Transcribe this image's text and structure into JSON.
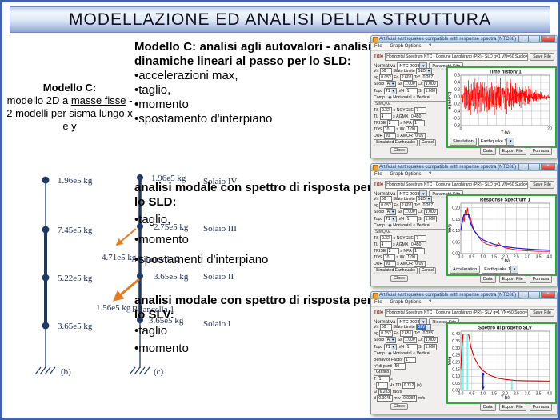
{
  "slide": {
    "title": "MODELLAZIONE ED ANALISI DELLA STRUTTURA"
  },
  "left_panel": {
    "heading": "Modello C:",
    "body_pre": "modello 2D a ",
    "body_underlined": "masse fisse",
    "body_post": " - 2 modelli per sisma lungo x e y"
  },
  "text_blocks": {
    "block1": {
      "heading": "Modello C: analisi agli autovalori - analisi dinamiche lineari al passo per lo SLD:",
      "bullets": [
        "accelerazioni max,",
        "taglio,",
        "momento",
        "spostamento d'interpiano"
      ]
    },
    "block2": {
      "heading": "analisi modale con spettro di risposta per lo SLD:",
      "bullets": [
        "taglio,",
        "momento",
        "spostamenti d'interpiano"
      ]
    },
    "block3": {
      "heading": "analisi modale con spettro di risposta per lo SLV:",
      "bullets": [
        "taglio",
        "momento"
      ]
    }
  },
  "diagram": {
    "accent_color": "#1F3864",
    "arrow_color": "#E07C24",
    "model_b": {
      "masses": [
        "1.96e5 kg",
        "7.45e5 kg",
        "5.22e5 kg",
        "3.65e5 kg"
      ],
      "caption": "(b)"
    },
    "model_c": {
      "masses": [
        "1.96e5 kg",
        "2.75e5 kg",
        "3.65e5 kg",
        "3.65e5 kg"
      ],
      "floors": [
        "Solaio IV",
        "Solaio III",
        "Solaio II",
        "Solaio I"
      ],
      "caption": "(c)",
      "pendulums": [
        {
          "mass": "4.71e5 kg",
          "name": "Bilancella 2"
        },
        {
          "mass": "1.56e5 kg",
          "name": "Bilancella 1"
        }
      ]
    }
  },
  "windows": [
    {
      "title_bar": "Artificial earthquakes compatible with response spectra (NTC08)",
      "menu": [
        "File",
        "Graph Options",
        "?"
      ],
      "title_label": "Title",
      "title_value": "Horizontal Spectrum NTC - Comune Langhirano (PR) - SLD q=1 VN=50 Suolo=A Topo=T1 SF=1",
      "save_button": "Save File",
      "normativa_label": "Normativa",
      "normativa_value": "NTC 2008",
      "parametri_button": "Parametri Sito",
      "form_rows": [
        [
          [
            "lbl",
            "Vn"
          ],
          [
            "box",
            "50"
          ],
          [
            "lbl",
            "Stato Limite"
          ],
          [
            "combo",
            "SLD"
          ]
        ],
        [
          [
            "lbl",
            "ag"
          ],
          [
            "box",
            "0.052"
          ],
          [
            "lbl",
            "Fo"
          ],
          [
            "box",
            "2.602"
          ],
          [
            "lbl",
            "Tc*"
          ],
          [
            "box",
            "0.267"
          ]
        ],
        [
          [
            "lbl",
            "Suolo"
          ],
          [
            "combo",
            "A"
          ],
          [
            "lbl",
            "Ss"
          ],
          [
            "box",
            "1.000"
          ],
          [
            "lbl",
            "Cc"
          ],
          [
            "box",
            "1.000"
          ]
        ],
        [
          [
            "lbl",
            "Topo"
          ],
          [
            "combo",
            "T1"
          ],
          [
            "lbl",
            "h/H"
          ],
          [
            "box",
            "1"
          ],
          [
            "lbl",
            "St"
          ],
          [
            "box",
            "1.000"
          ]
        ],
        [
          [
            "lbl",
            "Comp.:"
          ],
          [
            "radio1",
            "Horizontal"
          ],
          [
            "radio0",
            "Vertical"
          ]
        ],
        [
          [
            "group",
            "SIMQKE"
          ]
        ],
        [
          [
            "lbl",
            "TS"
          ],
          [
            "box",
            "0.32"
          ],
          [
            "lbl",
            "s"
          ],
          [
            "lbl",
            "NCYCLE"
          ],
          [
            "box",
            "7"
          ]
        ],
        [
          [
            "lbl",
            "TL"
          ],
          [
            "box",
            "4"
          ],
          [
            "lbl",
            "s"
          ],
          [
            "lbl",
            "AGMX"
          ],
          [
            "box",
            "0.450"
          ]
        ],
        [
          [
            "lbl",
            "TRISE"
          ],
          [
            "box",
            "2"
          ],
          [
            "lbl",
            "s"
          ],
          [
            "lbl",
            "NPA"
          ],
          [
            "box",
            "1"
          ]
        ],
        [
          [
            "lbl",
            "TDS"
          ],
          [
            "box",
            "10"
          ],
          [
            "lbl",
            "s"
          ],
          [
            "lbl",
            "IIX"
          ],
          [
            "box",
            "1.00"
          ]
        ],
        [
          [
            "lbl",
            "DUR"
          ],
          [
            "box",
            "20"
          ],
          [
            "lbl",
            "s"
          ],
          [
            "lbl",
            "AMOR"
          ],
          [
            "box",
            "0.05"
          ]
        ],
        [
          [
            "btn",
            "Simulated Earthquake"
          ],
          [
            "btn",
            "Cancel"
          ]
        ]
      ],
      "graph_button": "Simulation",
      "graph_combo": "Earthquake 1",
      "footer_buttons": [
        "Data",
        "Export File",
        "Formula"
      ],
      "close_button": "Close"
    },
    {
      "title_bar": "Artificial earthquakes compatible with response spectra (NTC08)",
      "menu": [
        "File",
        "Graph Options",
        "?"
      ],
      "title_label": "Title",
      "title_value": "Horizontal Spectrum NTC - Comune Langhirano (PR) - SLD q=1 VN=50 Suolo=A Topo=T1 SF=1",
      "save_button": "Save File",
      "normativa_label": "Normativa",
      "normativa_value": "NTC 2008",
      "parametri_button": "Parametri Sito",
      "form_rows": [
        [
          [
            "lbl",
            "Vn"
          ],
          [
            "box",
            "50"
          ],
          [
            "lbl",
            "Stato Limite"
          ],
          [
            "combo",
            "SLD"
          ]
        ],
        [
          [
            "lbl",
            "ag"
          ],
          [
            "box",
            "0.052"
          ],
          [
            "lbl",
            "Fo"
          ],
          [
            "box",
            "2.602"
          ],
          [
            "lbl",
            "Tc*"
          ],
          [
            "box",
            "0.267"
          ]
        ],
        [
          [
            "lbl",
            "Suolo"
          ],
          [
            "combo",
            "A"
          ],
          [
            "lbl",
            "Ss"
          ],
          [
            "box",
            "1.000"
          ],
          [
            "lbl",
            "Cc"
          ],
          [
            "box",
            "1.000"
          ]
        ],
        [
          [
            "lbl",
            "Topo"
          ],
          [
            "combo",
            "T1"
          ],
          [
            "lbl",
            "h/H"
          ],
          [
            "box",
            "1"
          ],
          [
            "lbl",
            "St"
          ],
          [
            "box",
            "1.000"
          ]
        ],
        [
          [
            "lbl",
            "Comp.:"
          ],
          [
            "radio1",
            "Horizontal"
          ],
          [
            "radio0",
            "Vertical"
          ]
        ],
        [
          [
            "group",
            "SIMQKE"
          ]
        ],
        [
          [
            "lbl",
            "TS"
          ],
          [
            "box",
            "0.32"
          ],
          [
            "lbl",
            "s"
          ],
          [
            "lbl",
            "NCYCLE"
          ],
          [
            "box",
            "7"
          ]
        ],
        [
          [
            "lbl",
            "TL"
          ],
          [
            "box",
            "4"
          ],
          [
            "lbl",
            "s"
          ],
          [
            "lbl",
            "AGMX"
          ],
          [
            "box",
            "0.450"
          ]
        ],
        [
          [
            "lbl",
            "TRISE"
          ],
          [
            "box",
            "2"
          ],
          [
            "lbl",
            "s"
          ],
          [
            "lbl",
            "NPA"
          ],
          [
            "box",
            "1"
          ]
        ],
        [
          [
            "lbl",
            "TDS"
          ],
          [
            "box",
            "10"
          ],
          [
            "lbl",
            "s"
          ],
          [
            "lbl",
            "IIX"
          ],
          [
            "box",
            "1.00"
          ]
        ],
        [
          [
            "lbl",
            "DUR"
          ],
          [
            "box",
            "20"
          ],
          [
            "lbl",
            "s"
          ],
          [
            "lbl",
            "AMOR"
          ],
          [
            "box",
            "0.05"
          ]
        ],
        [
          [
            "btn",
            "Simulated Earthquake"
          ],
          [
            "btn",
            "Cancel"
          ]
        ]
      ],
      "graph_button": "Acceleration",
      "graph_combo": "Earthquake 1",
      "footer_buttons": [
        "Data",
        "Export File",
        "Formula"
      ],
      "close_button": "Close"
    },
    {
      "title_bar": "Artificial earthquakes compatible with response spectra (NTC08)",
      "menu": [
        "File",
        "Graph Options",
        "?"
      ],
      "title_label": "Title",
      "title_value": "Horizontal Spectrum NTC - Comune Langhirano (PR) - SLV q=1 VN=50 Suolo=A Topo=T1 SF=1",
      "save_button": "Save File",
      "normativa_label": "Normativa",
      "normativa_value": "NTC 2008",
      "parametri_button": "Ricerca Sito",
      "form_rows": [
        [
          [
            "lbl",
            "Vn"
          ],
          [
            "box",
            "50"
          ],
          [
            "lbl",
            "Stato Limite"
          ],
          [
            "combosel",
            "SLV"
          ]
        ],
        [
          [
            "lbl",
            "ag"
          ],
          [
            "box",
            "0.152"
          ],
          [
            "lbl",
            "Fo"
          ],
          [
            "box",
            "2.651"
          ],
          [
            "lbl",
            "Tc*"
          ],
          [
            "box",
            "0.285"
          ]
        ],
        [
          [
            "lbl",
            "Suolo"
          ],
          [
            "combo",
            "A"
          ],
          [
            "lbl",
            "Ss"
          ],
          [
            "box",
            "1.000"
          ],
          [
            "lbl",
            "Cc"
          ],
          [
            "box",
            "1.000"
          ]
        ],
        [
          [
            "lbl",
            "Topo"
          ],
          [
            "combo",
            "T1"
          ],
          [
            "lbl",
            "h/H"
          ],
          [
            "box",
            "1"
          ],
          [
            "lbl",
            "St"
          ],
          [
            "box",
            "1.000"
          ]
        ],
        [
          [
            "lbl",
            "Comp.:"
          ],
          [
            "radio1",
            "Horizontal"
          ],
          [
            "radio0",
            "Vertical"
          ]
        ],
        [
          [
            "lbl",
            "Behavior Factor"
          ],
          [
            "box",
            "1"
          ]
        ],
        [
          [
            "lbl",
            "n° di punti"
          ],
          [
            "box",
            "50"
          ]
        ],
        [
          [
            "btn",
            "Grafico"
          ]
        ],
        [
          [
            "lbl",
            "T"
          ],
          [
            "box",
            "1"
          ],
          [
            "lbl",
            "s"
          ]
        ],
        [
          [
            "lbl",
            "f"
          ],
          [
            "box",
            "1"
          ],
          [
            "lbl",
            "Hz"
          ],
          [
            "lbl",
            "TD"
          ],
          [
            "box",
            "0.712"
          ],
          [
            "lbl",
            "(s)"
          ]
        ],
        [
          [
            "lbl",
            "ω"
          ],
          [
            "box",
            "6.283"
          ],
          [
            "lbl",
            "rad/s"
          ]
        ],
        [
          [
            "lbl",
            "d"
          ],
          [
            "box",
            "0.0045"
          ],
          [
            "lbl",
            "m"
          ],
          [
            "lbl",
            "v"
          ],
          [
            "box",
            "0.0284"
          ],
          [
            "lbl",
            "m/s"
          ]
        ]
      ],
      "footer_buttons": [
        "Data",
        "Export File",
        "Formula"
      ],
      "close_button": "Close"
    }
  ],
  "chart_data": [
    {
      "type": "line",
      "title": "Time history 1",
      "xlabel": "T (s)",
      "ylabel": "a (m/s^2)",
      "xlim": [
        0,
        20
      ],
      "ylim": [
        -0.8,
        0.6
      ],
      "xgrid": [
        0,
        2,
        4,
        6,
        8,
        10,
        12,
        14,
        16,
        18,
        20
      ],
      "ygrid": [
        -0.8,
        -0.6,
        -0.4,
        -0.2,
        0,
        0.2,
        0.4,
        0.6
      ],
      "xtick_labels": [
        0,
        20
      ],
      "ytick_labels": [
        0.6,
        0.4,
        0.2,
        0.0,
        -0.2,
        -0.4,
        -0.6,
        -0.8
      ],
      "xdec": 0,
      "ydec": 1,
      "grid": true,
      "legend": "none",
      "series": [
        {
          "name": "synthetic accelerogram (SIMQKE), peak ≈ ±0.55 m/s^2, strong phase 0–12 s then decaying tail to 20 s",
          "color": "#ff0000",
          "kind": "noise",
          "peak": 0.55,
          "width": 0.5
        }
      ]
    },
    {
      "type": "line",
      "title": "Response Spectrum 1",
      "xlabel": "T (s)",
      "ylabel": "Sa/g",
      "xlim": [
        0,
        4
      ],
      "ylim": [
        0,
        0.22
      ],
      "xgrid": [
        0,
        0.5,
        1,
        1.5,
        2,
        2.5,
        3,
        3.5,
        4
      ],
      "ygrid": [
        0,
        0.05,
        0.1,
        0.15,
        0.2
      ],
      "xtick_labels": [
        0,
        0.5,
        1,
        1.5,
        2,
        2.5,
        3,
        3.5,
        4
      ],
      "ytick_labels": [
        0.2,
        0.15,
        0.1,
        0.05,
        0.0
      ],
      "xdec": 1,
      "ydec": 2,
      "grid": true,
      "legend": "none",
      "series": [
        {
          "name": "simulated earthquake spectrum",
          "color": "#ff0000",
          "width": 0.9,
          "x": [
            0,
            0.05,
            0.1,
            0.15,
            0.2,
            0.25,
            0.3,
            0.35,
            0.4,
            0.5,
            0.6,
            0.7,
            0.8,
            0.9,
            1.0,
            1.2,
            1.4,
            1.6,
            1.7,
            1.8,
            2.0,
            2.3,
            2.6,
            3.0,
            3.5,
            4.0
          ],
          "y": [
            0.1,
            0.13,
            0.16,
            0.14,
            0.19,
            0.165,
            0.2,
            0.16,
            0.17,
            0.13,
            0.1,
            0.09,
            0.075,
            0.06,
            0.05,
            0.04,
            0.035,
            0.03,
            0.047,
            0.035,
            0.025,
            0.02,
            0.015,
            0.012,
            0.01,
            0.01
          ]
        },
        {
          "name": "target NTC elastic spectrum SLD",
          "color": "#2222cc",
          "width": 1.3,
          "x": [
            0,
            0.1,
            0.15,
            0.35,
            0.45,
            0.6,
            0.8,
            1.0,
            1.5,
            2.0,
            2.5,
            3.0,
            3.5,
            4.0
          ],
          "y": [
            0.1,
            0.155,
            0.17,
            0.17,
            0.13,
            0.1,
            0.075,
            0.06,
            0.04,
            0.03,
            0.024,
            0.02,
            0.017,
            0.015
          ]
        }
      ]
    },
    {
      "type": "line",
      "title": "Spettro di progetto SLV",
      "xlabel": "T (s)",
      "ylabel": "Sa/g",
      "xlim": [
        0,
        4
      ],
      "ylim": [
        0,
        0.42
      ],
      "xgrid": [
        0,
        0.5,
        1,
        1.5,
        2,
        2.5,
        3,
        3.5,
        4
      ],
      "ygrid": [
        0,
        0.05,
        0.1,
        0.15,
        0.2,
        0.25,
        0.3,
        0.35,
        0.4
      ],
      "xtick_labels": [
        0,
        0.5,
        1,
        1.5,
        2,
        2.5,
        3,
        3.5,
        4
      ],
      "ytick_labels": [
        0.4,
        0.35,
        0.3,
        0.25,
        0.2,
        0.15,
        0.1,
        0.05,
        0.0
      ],
      "xdec": 1,
      "ydec": 2,
      "grid": true,
      "legend": "none",
      "series": [
        {
          "name": "design spectrum SLV (plateau 0.40 between TB≈0.1 and TC≈0.35, decays to ≈0.066 at 4 s)",
          "color": "#cc0000",
          "width": 1.1,
          "x": [
            0,
            0.05,
            0.1,
            0.35,
            0.45,
            0.6,
            0.8,
            1.0,
            1.3,
            1.7,
            2.0,
            2.5,
            3.0,
            3.5,
            4.0
          ],
          "y": [
            0.152,
            0.3,
            0.4,
            0.4,
            0.31,
            0.235,
            0.175,
            0.14,
            0.108,
            0.085,
            0.078,
            0.07,
            0.068,
            0.067,
            0.066
          ]
        }
      ],
      "vlines": [
        {
          "x": 0.1,
          "y": 0.4,
          "color": "#7ff0f0"
        },
        {
          "x": 0.3,
          "y": 0.4,
          "color": "#7ff0f0"
        },
        {
          "x": 2.3,
          "y": 0.07,
          "color": "#7ff0f0"
        }
      ],
      "marker_arrow": {
        "x": 1.0,
        "y": 0.115,
        "color": "#2222bb"
      }
    }
  ]
}
